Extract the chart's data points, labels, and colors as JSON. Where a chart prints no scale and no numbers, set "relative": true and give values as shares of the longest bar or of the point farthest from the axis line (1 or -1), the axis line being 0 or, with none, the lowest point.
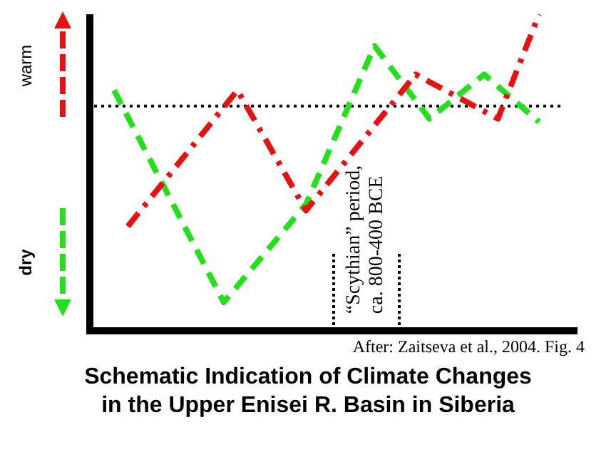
{
  "chart_data": {
    "type": "line",
    "relative": true,
    "title": "Schematic Indication of Climate Changes\nin the Upper Enisei R. Basin in Siberia",
    "categories": [
      null,
      null,
      null,
      null,
      null,
      null,
      null,
      null,
      null,
      null,
      null,
      null,
      null,
      null,
      null,
      null,
      null,
      null,
      null,
      null,
      null,
      null,
      null,
      null,
      null,
      null,
      null,
      null,
      null,
      null,
      null,
      null
    ],
    "legend": "left",
    "marker": "none",
    "series": [
      {
        "name": "warm",
        "color": "#e81010",
        "line_style": "dashdot",
        "values": [
          null,
          0.33,
          null,
          null,
          null,
          null,
          null,
          null,
          null,
          0.76,
          null,
          null,
          null,
          null,
          0.38,
          null,
          null,
          null,
          null,
          null,
          null,
          null,
          0.81,
          null,
          null,
          null,
          null,
          null,
          0.67,
          null,
          null,
          1
        ]
      },
      {
        "name": "dry",
        "color": "#22e01a",
        "line_style": "dashed",
        "values": [
          0.76,
          null,
          null,
          null,
          null,
          null,
          null,
          null,
          0.09,
          null,
          null,
          null,
          null,
          null,
          0.4,
          null,
          null,
          null,
          null,
          0.9,
          null,
          null,
          null,
          0.67,
          null,
          null,
          null,
          0.81,
          null,
          null,
          null,
          0.66
        ]
      }
    ],
    "ref_lines": [
      {
        "axis": "y",
        "value": 0.71,
        "color": "#000000",
        "line_style": "dotted"
      }
    ],
    "annotations": [
      "“Scythian” period,\nca. 800-400 BCE",
      "After: Zaitseva et al., 2004. Fig. 4"
    ]
  }
}
